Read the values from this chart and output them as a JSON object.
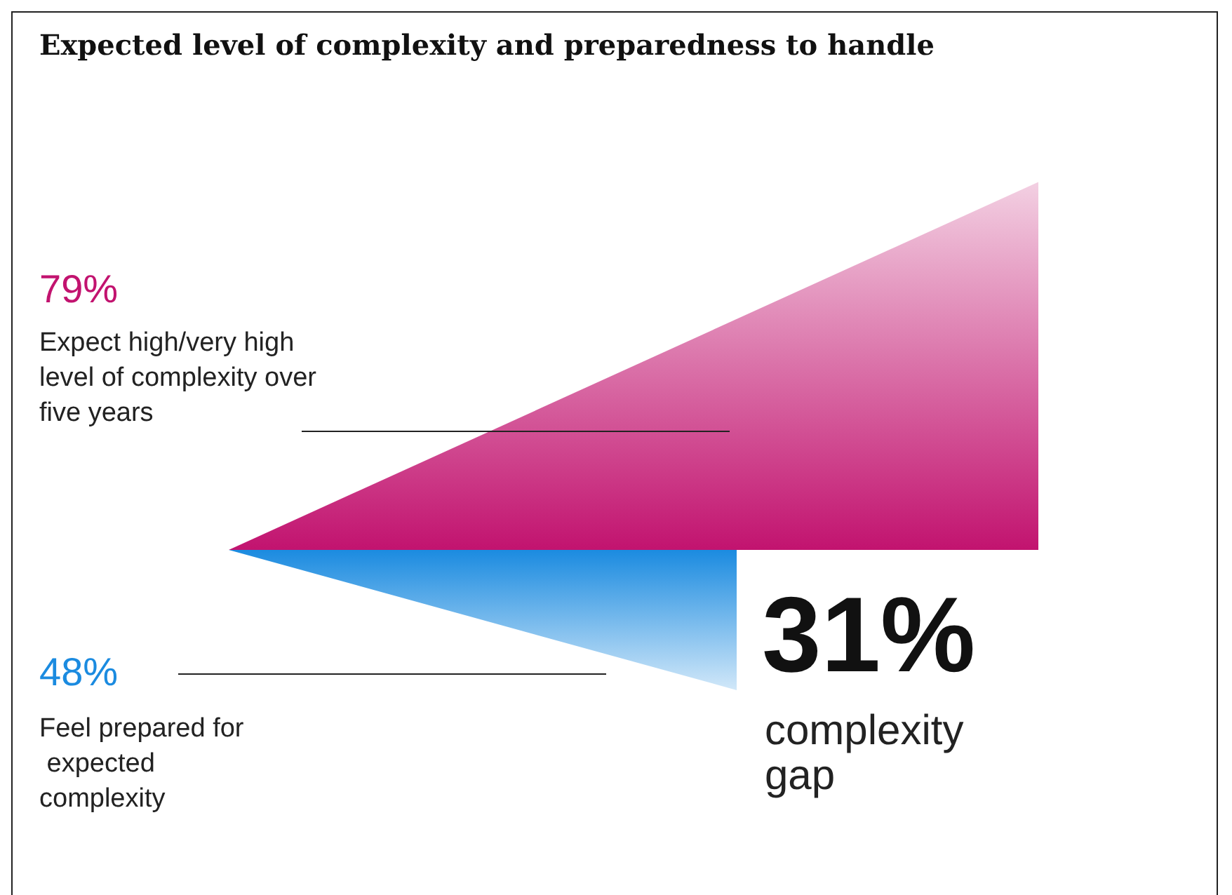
{
  "chart_data": {
    "type": "other",
    "title": "Expected level of complexity and preparedness to handle",
    "categories": [
      "Expect high/very high level of complexity over five years",
      "Feel prepared for expected complexity"
    ],
    "values": [
      79,
      48
    ],
    "value_labels": [
      "79%",
      "48%"
    ],
    "colors": [
      "#c2136f",
      "#1b8be0"
    ],
    "annotations": [
      "31%",
      "complexity gap"
    ]
  }
}
